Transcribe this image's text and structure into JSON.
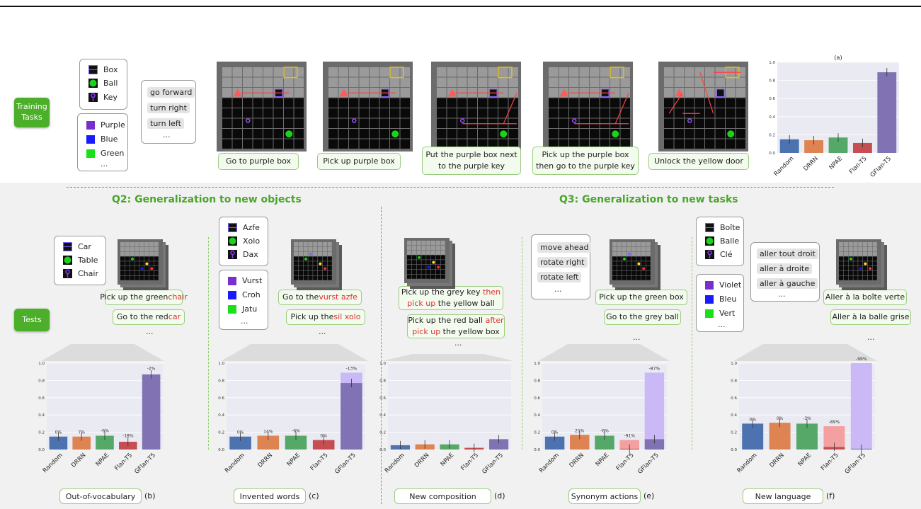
{
  "training": {
    "button": "Training\nTasks",
    "objects": [
      "Box",
      "Ball",
      "Key"
    ],
    "colors": [
      "Purple",
      "Blue",
      "Green"
    ],
    "colors_more": "...",
    "actions": [
      "go forward",
      "turn right",
      "turn left"
    ],
    "actions_more": "...",
    "tasks": [
      "Go to purple box",
      "Pick up purple box",
      "Put the purple box next to the purple key",
      "Pick up the purple box then go to the purple key",
      "Unlock the yellow door"
    ]
  },
  "tests": {
    "button": "Tests"
  },
  "q2": {
    "title": "Q2: Generalization to new objects"
  },
  "q3": {
    "title": "Q3: Generalization to new tasks"
  },
  "panel_b": {
    "objects": [
      "Car",
      "Table",
      "Chair"
    ],
    "cap1": {
      "pre": "Pick up the green ",
      "red": "chair"
    },
    "cap2": {
      "pre": "Go to the red ",
      "red": "car"
    },
    "ellipsis": "...",
    "label": "Out-of-vocabulary",
    "letter": "(b)"
  },
  "panel_c": {
    "objects": [
      "Azfe",
      "Xolo",
      "Dax"
    ],
    "colors": [
      "Vurst",
      "Croh",
      "Jatu"
    ],
    "colors_more": "...",
    "cap1": {
      "pre": "Go to the ",
      "red": "vurst azfe"
    },
    "cap2": {
      "pre": "Pick up the ",
      "red": "sil xolo"
    },
    "ellipsis": "...",
    "label": "Invented words",
    "letter": "(c)"
  },
  "panel_d": {
    "cap1": {
      "a": "Pick up the grey key ",
      "r1": "then",
      "r2": "pick up",
      "b": " the yellow ball"
    },
    "cap2": {
      "a": "Pick up the red ball ",
      "r1": "after",
      "r2": "pick up",
      "b": " the yellow box"
    },
    "ellipsis": "...",
    "label": "New composition",
    "letter": "(d)"
  },
  "panel_e": {
    "actions": [
      "move ahead",
      "rotate right",
      "rotate left"
    ],
    "actions_more": "...",
    "cap1": "Pick up the green box",
    "cap2": "Go to the grey ball",
    "ellipsis": "...",
    "label": "Synonym actions",
    "letter": "(e)"
  },
  "panel_f": {
    "objects": [
      "Boîte",
      "Balle",
      "Clé"
    ],
    "colors": [
      "Violet",
      "Bleu",
      "Vert"
    ],
    "colors_more": "...",
    "actions": [
      "aller tout droit",
      "aller à droite",
      "aller à gauche"
    ],
    "actions_more": "...",
    "cap1": "Aller à la boîte verte",
    "cap2": "Aller à la balle grise",
    "ellipsis": "...",
    "label": "New language",
    "letter": "(f)"
  },
  "colors": {
    "blue": "#4c72b0",
    "orange": "#dd8452",
    "green": "#55a868",
    "red": "#c44e52",
    "purple": "#8172b3",
    "purple_light": "#cbb8f7",
    "red_light": "#f4a0a0",
    "accent": "#4caf2a"
  },
  "chart_data": [
    {
      "id": "a",
      "type": "bar",
      "title": "(a)",
      "categories": [
        "Random",
        "DRRN",
        "NPAE",
        "Flan-T5",
        "GFlan-T5"
      ],
      "values": [
        0.15,
        0.14,
        0.17,
        0.11,
        0.89
      ],
      "ylim": [
        0,
        1.0
      ],
      "yticks": [
        "0.0",
        "0.2",
        "0.4",
        "0.6",
        "0.8",
        "1.0"
      ],
      "pct": []
    },
    {
      "id": "b",
      "type": "bar",
      "categories": [
        "Random",
        "DRRN",
        "NPAE",
        "Flan-T5",
        "GFlan-T5"
      ],
      "values": [
        0.15,
        0.15,
        0.16,
        0.09,
        0.87
      ],
      "base": [
        0.15,
        0.14,
        0.17,
        0.11,
        0.89
      ],
      "ylim": [
        0,
        1.0
      ],
      "yticks": [
        "0.0",
        "0.2",
        "0.4",
        "0.6",
        "0.8",
        "1.0"
      ],
      "pct": [
        "0%",
        "7%",
        "-6%",
        "-18%",
        "-2%"
      ]
    },
    {
      "id": "c",
      "type": "bar",
      "categories": [
        "Random",
        "DRRN",
        "NPAE",
        "Flan-T5",
        "GFlan-T5"
      ],
      "values": [
        0.15,
        0.16,
        0.16,
        0.11,
        0.77
      ],
      "base": [
        0.15,
        0.14,
        0.17,
        0.11,
        0.89
      ],
      "ylim": [
        0,
        1.0
      ],
      "yticks": [
        "0.0",
        "0.2",
        "0.4",
        "0.6",
        "0.8",
        "1.0"
      ],
      "pct": [
        "0%",
        "14%",
        "-6%",
        "0%",
        "-13%"
      ]
    },
    {
      "id": "d",
      "type": "bar",
      "categories": [
        "Random",
        "DRRN",
        "NPAE",
        "Flan-T5",
        "GFlan-T5"
      ],
      "values": [
        0.05,
        0.06,
        0.06,
        0.02,
        0.12
      ],
      "ylim": [
        0,
        1.0
      ],
      "yticks": [
        "0.0",
        "0.2",
        "0.4",
        "0.6",
        "0.8",
        "1.0"
      ],
      "pct": []
    },
    {
      "id": "e",
      "type": "bar",
      "categories": [
        "Random",
        "DRRN",
        "NPAE",
        "Flan-T5",
        "GFlan-T5"
      ],
      "values": [
        0.15,
        0.17,
        0.16,
        0.01,
        0.12
      ],
      "base": [
        0.15,
        0.14,
        0.17,
        0.11,
        0.89
      ],
      "ylim": [
        0,
        1.0
      ],
      "yticks": [
        "0.0",
        "0.2",
        "0.4",
        "0.6",
        "0.8",
        "1.0"
      ],
      "pct": [
        "0%",
        "21%",
        "-6%",
        "-91%",
        "-87%"
      ]
    },
    {
      "id": "f",
      "type": "bar",
      "categories": [
        "Random",
        "DRRN",
        "NPAE",
        "Flan-T5",
        "GFlan-T5"
      ],
      "values": [
        0.3,
        0.31,
        0.3,
        0.03,
        0.01
      ],
      "base": [
        0.3,
        0.31,
        0.31,
        0.27,
        1.0
      ],
      "ylim": [
        0,
        1.0
      ],
      "yticks": [
        "0.0",
        "0.2",
        "0.4",
        "0.6",
        "0.8",
        "1.0"
      ],
      "pct": [
        "0%",
        "0%",
        "-3%",
        "-89%",
        "-99%"
      ]
    }
  ]
}
